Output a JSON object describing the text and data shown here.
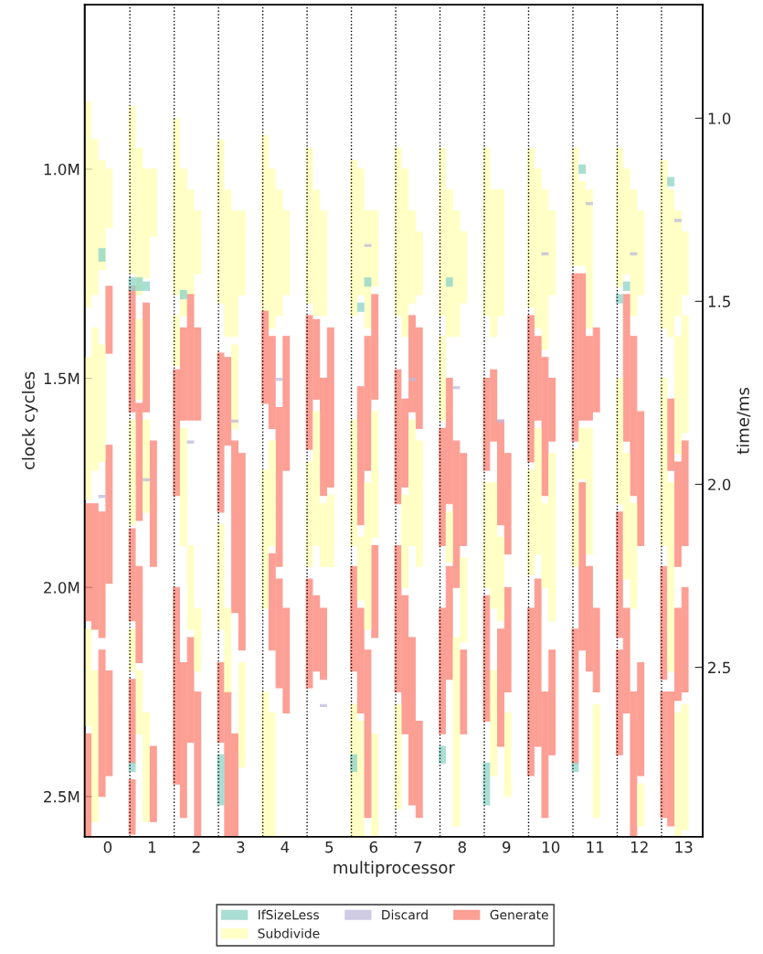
{
  "chart_data": {
    "type": "bar",
    "xlabel": "multiprocessor",
    "ylabel": "clock cycles",
    "y2label": "time/ms",
    "xlim": [
      -0.52,
      13.43
    ],
    "xticks": [
      0,
      1,
      2,
      3,
      4,
      5,
      6,
      7,
      8,
      9,
      10,
      11,
      12,
      13
    ],
    "ylim": [
      2.596,
      0.607
    ],
    "yticks": [
      {
        "value": 1.0,
        "label": "1.0M"
      },
      {
        "value": 1.5,
        "label": "1.5M"
      },
      {
        "value": 2.0,
        "label": "2.0M"
      },
      {
        "value": 2.5,
        "label": "2.5M"
      }
    ],
    "y2lim": [
      2.9625,
      0.69
    ],
    "y2ticks": [
      {
        "value": 1.0,
        "label": "1.0"
      },
      1.5,
      {
        "value": 2.0,
        "label": "2.0"
      },
      2.5
    ],
    "grid": false,
    "legend": "bottom",
    "ref_lines": [
      {
        "axis": "x",
        "value": 0.5,
        "color": "#000000",
        "line_style": "dotted"
      },
      {
        "axis": "x",
        "value": 1.5,
        "color": "#000000",
        "line_style": "dotted"
      },
      {
        "axis": "x",
        "value": 2.5,
        "color": "#000000",
        "line_style": "dotted"
      },
      {
        "axis": "x",
        "value": 3.5,
        "color": "#000000",
        "line_style": "dotted"
      },
      {
        "axis": "x",
        "value": 4.5,
        "color": "#000000",
        "line_style": "dotted"
      },
      {
        "axis": "x",
        "value": 5.5,
        "color": "#000000",
        "line_style": "dotted"
      },
      {
        "axis": "x",
        "value": 6.5,
        "color": "#000000",
        "line_style": "dotted"
      },
      {
        "axis": "x",
        "value": 7.5,
        "color": "#000000",
        "line_style": "dotted"
      },
      {
        "axis": "x",
        "value": 8.5,
        "color": "#000000",
        "line_style": "dotted"
      },
      {
        "axis": "x",
        "value": 9.5,
        "color": "#000000",
        "line_style": "dotted"
      },
      {
        "axis": "x",
        "value": 10.5,
        "color": "#000000",
        "line_style": "dotted"
      },
      {
        "axis": "x",
        "value": 11.5,
        "color": "#000000",
        "line_style": "dotted"
      },
      {
        "axis": "x",
        "value": 12.5,
        "color": "#000000",
        "line_style": "dotted"
      }
    ],
    "series": [
      {
        "name": "IfSizeLess",
        "color": "#8dd3c7",
        "x": [
          -0.13,
          0.55,
          0.71,
          0.87,
          1.71,
          2.55,
          5.55,
          5.71,
          5.87,
          7.55,
          7.71,
          8.55,
          10.55,
          10.71,
          11.55,
          11.71,
          12.71
        ],
        "base": [
          1.19,
          1.26,
          1.26,
          1.27,
          1.29,
          2.4,
          2.4,
          1.32,
          1.26,
          2.38,
          1.26,
          2.42,
          2.42,
          0.99,
          1.3,
          1.27,
          1.02
        ],
        "values": [
          0.03,
          0.03,
          0.03,
          0.02,
          0.02,
          0.12,
          0.04,
          0.02,
          0.02,
          0.04,
          0.02,
          0.1,
          0.02,
          0.02,
          0.02,
          0.02,
          0.02
        ]
      },
      {
        "color": "#8dd3c7",
        "x": [
          0.55
        ],
        "base": [
          2.42
        ],
        "values": [
          0.02
        ]
      },
      {
        "name": "Subdivide",
        "color": "#ffffb3",
        "x": [
          -0.45,
          -0.29,
          -0.13,
          0.03,
          0.55,
          0.71,
          0.87,
          1.03,
          1.55,
          1.71,
          1.87,
          2.03,
          2.55,
          2.71,
          2.87,
          3.03,
          3.55,
          3.71,
          3.87,
          4.03,
          4.55,
          4.71,
          4.87,
          5.03,
          5.55,
          5.71,
          5.87,
          6.03,
          6.55,
          6.71,
          6.87,
          7.03,
          7.55,
          7.71,
          7.87,
          8.03,
          8.55,
          8.71,
          8.87,
          9.03,
          9.55,
          9.71,
          9.87,
          10.03,
          10.55,
          10.71,
          10.87,
          11.03,
          11.55,
          11.71,
          11.87,
          12.03,
          12.55,
          12.71,
          12.87,
          13.03
        ],
        "base": [
          0.84,
          0.93,
          0.98,
          1.0,
          0.85,
          0.95,
          1.0,
          1.0,
          0.88,
          1.0,
          1.05,
          1.1,
          0.93,
          1.05,
          1.1,
          1.1,
          0.92,
          1.0,
          1.05,
          1.1,
          0.95,
          1.05,
          1.1,
          1.78,
          0.98,
          1.0,
          1.1,
          1.1,
          0.95,
          1.0,
          1.1,
          1.15,
          0.95,
          1.05,
          1.1,
          1.15,
          0.95,
          1.05,
          1.05,
          2.3,
          0.95,
          1.0,
          1.05,
          1.1,
          0.95,
          1.03,
          1.05,
          2.28,
          0.95,
          1.0,
          1.05,
          1.1,
          0.98,
          1.05,
          1.1,
          1.15
        ],
        "values": [
          0.49,
          0.37,
          0.26,
          0.14,
          0.4,
          0.35,
          0.26,
          0.16,
          0.42,
          0.35,
          0.25,
          0.15,
          0.39,
          0.35,
          0.3,
          0.2,
          0.42,
          0.38,
          0.3,
          0.2,
          0.37,
          0.3,
          0.25,
          0.17,
          0.37,
          0.3,
          0.28,
          0.18,
          0.4,
          0.4,
          0.22,
          0.15,
          0.4,
          0.35,
          0.3,
          0.17,
          0.4,
          0.35,
          0.3,
          0.2,
          0.38,
          0.38,
          0.38,
          0.2,
          0.28,
          0.2,
          0.33,
          0.27,
          0.33,
          0.25,
          0.3,
          0.2,
          0.4,
          0.35,
          0.25,
          0.15
        ]
      },
      {
        "color": "#ffffb3",
        "x": [
          -0.45,
          -0.29,
          -0.13,
          0.55,
          0.71,
          0.87,
          1.55,
          1.71,
          1.87,
          2.03,
          2.55,
          2.71,
          2.87,
          3.03,
          3.55,
          3.71,
          4.55,
          4.71,
          4.87,
          5.55,
          5.71,
          5.87,
          6.03,
          6.55,
          6.71,
          6.87,
          7.03,
          7.55,
          7.71,
          7.87,
          8.03,
          8.55,
          8.71,
          8.87,
          9.55,
          9.71,
          9.87,
          10.03,
          10.55,
          10.71,
          10.87,
          11.55,
          11.71,
          11.87,
          12.03,
          12.55,
          12.71,
          12.87,
          13.03
        ],
        "base": [
          1.45,
          1.38,
          1.42,
          1.6,
          1.36,
          1.6,
          1.35,
          1.62,
          1.9,
          2.05,
          1.85,
          2.05,
          1.42,
          2.18,
          1.72,
          1.65,
          1.7,
          1.58,
          1.8,
          1.6,
          1.88,
          1.75,
          1.58,
          2.28,
          1.78,
          1.6,
          1.65,
          1.4,
          1.82,
          2.12,
          1.93,
          1.75,
          1.75,
          1.88,
          1.72,
          1.62,
          1.8,
          1.68,
          1.67,
          1.62,
          1.62,
          1.5,
          1.68,
          1.8,
          2.47,
          1.5,
          1.75,
          1.4,
          1.35
        ],
        "values": [
          0.34,
          0.34,
          0.28,
          0.25,
          0.19,
          0.22,
          0.12,
          0.28,
          0.2,
          0.15,
          0.25,
          0.2,
          0.2,
          0.25,
          0.33,
          0.25,
          0.25,
          0.32,
          0.15,
          0.3,
          0.15,
          0.35,
          0.3,
          0.25,
          0.22,
          0.3,
          0.3,
          0.2,
          0.12,
          0.45,
          0.2,
          0.25,
          0.3,
          0.2,
          0.25,
          0.3,
          0.2,
          0.4,
          0.28,
          0.12,
          0.3,
          0.3,
          0.3,
          0.25,
          0.1,
          0.4,
          0.45,
          0.28,
          0.28
        ]
      },
      {
        "color": "#ffffb3",
        "x": [
          -0.45,
          -0.29,
          0.55,
          0.71,
          0.87,
          3.55,
          3.71,
          5.55,
          5.71,
          6.03,
          8.71,
          12.87,
          13.03
        ],
        "base": [
          2.1,
          2.2,
          2.1,
          2.2,
          2.3,
          2.25,
          2.3,
          2.28,
          2.32,
          2.35,
          2.2,
          2.3,
          2.28
        ],
        "values": [
          0.23,
          0.36,
          0.1,
          0.15,
          0.26,
          0.35,
          0.3,
          0.32,
          0.28,
          0.25,
          0.25,
          0.3,
          0.3
        ]
      },
      {
        "name": "Discard",
        "color": "#bebada",
        "x": [
          -0.13,
          0.87,
          1.87,
          2.87,
          3.87,
          4.87,
          5.87,
          6.87,
          7.87,
          8.87,
          9.87,
          10.87,
          11.87,
          12.87
        ],
        "base": [
          1.78,
          1.74,
          1.65,
          1.6,
          1.5,
          2.28,
          1.18,
          1.5,
          1.52,
          1.6,
          1.2,
          1.08,
          1.2,
          1.12
        ],
        "values": [
          0.005,
          0.005,
          0.005,
          0.005,
          0.005,
          0.005,
          0.005,
          0.005,
          0.005,
          0.005,
          0.005,
          0.005,
          0.005,
          0.005
        ]
      },
      {
        "name": "Generate",
        "color": "#fb8072",
        "x": [
          -0.45,
          -0.29,
          -0.13,
          0.03,
          0.55,
          0.71,
          0.87,
          1.03,
          1.55,
          1.71,
          1.87,
          2.03,
          2.55,
          2.71,
          2.87,
          3.03,
          3.55,
          3.71,
          3.87,
          4.03,
          4.55,
          4.71,
          4.87,
          5.03,
          5.55,
          5.71,
          5.87,
          6.03,
          6.55,
          6.71,
          6.87,
          7.03,
          7.55,
          7.71,
          7.87,
          8.03,
          8.55,
          8.71,
          8.87,
          9.03,
          9.55,
          9.71,
          9.87,
          10.03,
          10.55,
          10.71,
          10.87,
          11.03,
          11.55,
          11.71,
          11.87,
          12.03,
          12.55,
          12.71,
          12.87,
          13.03
        ],
        "base": [
          1.8,
          1.8,
          1.82,
          1.28,
          1.28,
          1.56,
          1.32,
          1.65,
          1.48,
          1.38,
          1.3,
          1.38,
          1.44,
          1.45,
          1.65,
          1.68,
          1.34,
          1.4,
          1.57,
          1.4,
          1.35,
          1.36,
          1.5,
          1.38,
          1.95,
          1.52,
          1.4,
          1.3,
          1.48,
          1.55,
          1.35,
          1.38,
          1.62,
          1.5,
          1.65,
          1.68,
          1.5,
          1.48,
          1.6,
          1.68,
          1.35,
          1.4,
          1.45,
          1.5,
          1.25,
          1.25,
          1.4,
          1.38,
          1.82,
          1.3,
          1.4,
          1.58,
          1.95,
          1.55,
          1.7,
          1.65
        ],
        "values": [
          0.28,
          0.3,
          0.3,
          0.16,
          0.3,
          0.28,
          0.26,
          0.3,
          0.3,
          0.22,
          0.3,
          0.22,
          0.38,
          0.21,
          0.41,
          0.47,
          0.22,
          0.22,
          0.38,
          0.32,
          0.32,
          0.19,
          0.28,
          0.38,
          0.25,
          0.33,
          0.32,
          0.25,
          0.32,
          0.21,
          0.23,
          0.24,
          0.28,
          0.3,
          0.35,
          0.22,
          0.22,
          0.17,
          0.25,
          0.24,
          0.35,
          0.2,
          0.33,
          0.15,
          0.4,
          0.35,
          0.2,
          0.2,
          0.3,
          0.35,
          0.38,
          0.32,
          0.27,
          0.17,
          0.25,
          0.25
        ]
      },
      {
        "color": "#fb8072",
        "x": [
          -0.45,
          -0.13,
          0.03,
          0.55,
          0.71,
          1.03,
          1.55,
          1.71,
          1.87,
          2.03,
          2.55,
          2.71,
          2.87,
          3.71,
          3.87,
          4.03,
          4.55,
          4.71,
          4.87,
          5.71,
          5.87,
          6.03,
          6.55,
          6.71,
          6.87,
          7.03,
          7.55,
          7.71,
          8.03,
          8.55,
          8.87,
          9.03,
          9.55,
          9.71,
          9.87,
          10.03,
          10.55,
          10.71,
          10.87,
          11.03,
          11.55,
          11.71,
          11.87,
          12.03,
          12.55,
          12.71,
          12.87,
          13.03
        ],
        "base": [
          2.35,
          2.15,
          1.66,
          1.86,
          1.95,
          2.38,
          2.0,
          2.18,
          2.12,
          2.25,
          2.18,
          2.25,
          2.35,
          1.92,
          1.98,
          2.05,
          1.98,
          2.02,
          2.05,
          2.05,
          2.15,
          1.9,
          1.9,
          2.02,
          2.12,
          2.32,
          2.05,
          1.95,
          2.15,
          2.02,
          2.1,
          2.0,
          2.05,
          1.98,
          2.25,
          2.15,
          2.1,
          1.75,
          1.95,
          2.05,
          2.15,
          2.05,
          2.25,
          2.18,
          2.25,
          2.25,
          2.05,
          2.0
        ],
        "values": [
          0.25,
          0.35,
          0.33,
          0.22,
          0.23,
          0.18,
          0.47,
          0.37,
          0.25,
          0.35,
          0.19,
          0.35,
          0.25,
          0.23,
          0.26,
          0.25,
          0.26,
          0.18,
          0.17,
          0.25,
          0.4,
          0.22,
          0.35,
          0.33,
          0.4,
          0.23,
          0.3,
          0.27,
          0.2,
          0.3,
          0.28,
          0.25,
          0.4,
          0.4,
          0.3,
          0.25,
          0.32,
          0.4,
          0.25,
          0.2,
          0.25,
          0.25,
          0.35,
          0.27,
          0.3,
          0.32,
          0.22,
          0.25
        ]
      },
      {
        "color": "#fb8072",
        "x": [
          0.03,
          0.55
        ],
        "base": [
          2.2,
          2.22
        ],
        "values": [
          0.25,
          0.2
        ]
      },
      {
        "color": "#fb8072",
        "x": [
          0.55
        ],
        "base": [
          2.46
        ],
        "values": [
          0.13
        ]
      }
    ]
  }
}
